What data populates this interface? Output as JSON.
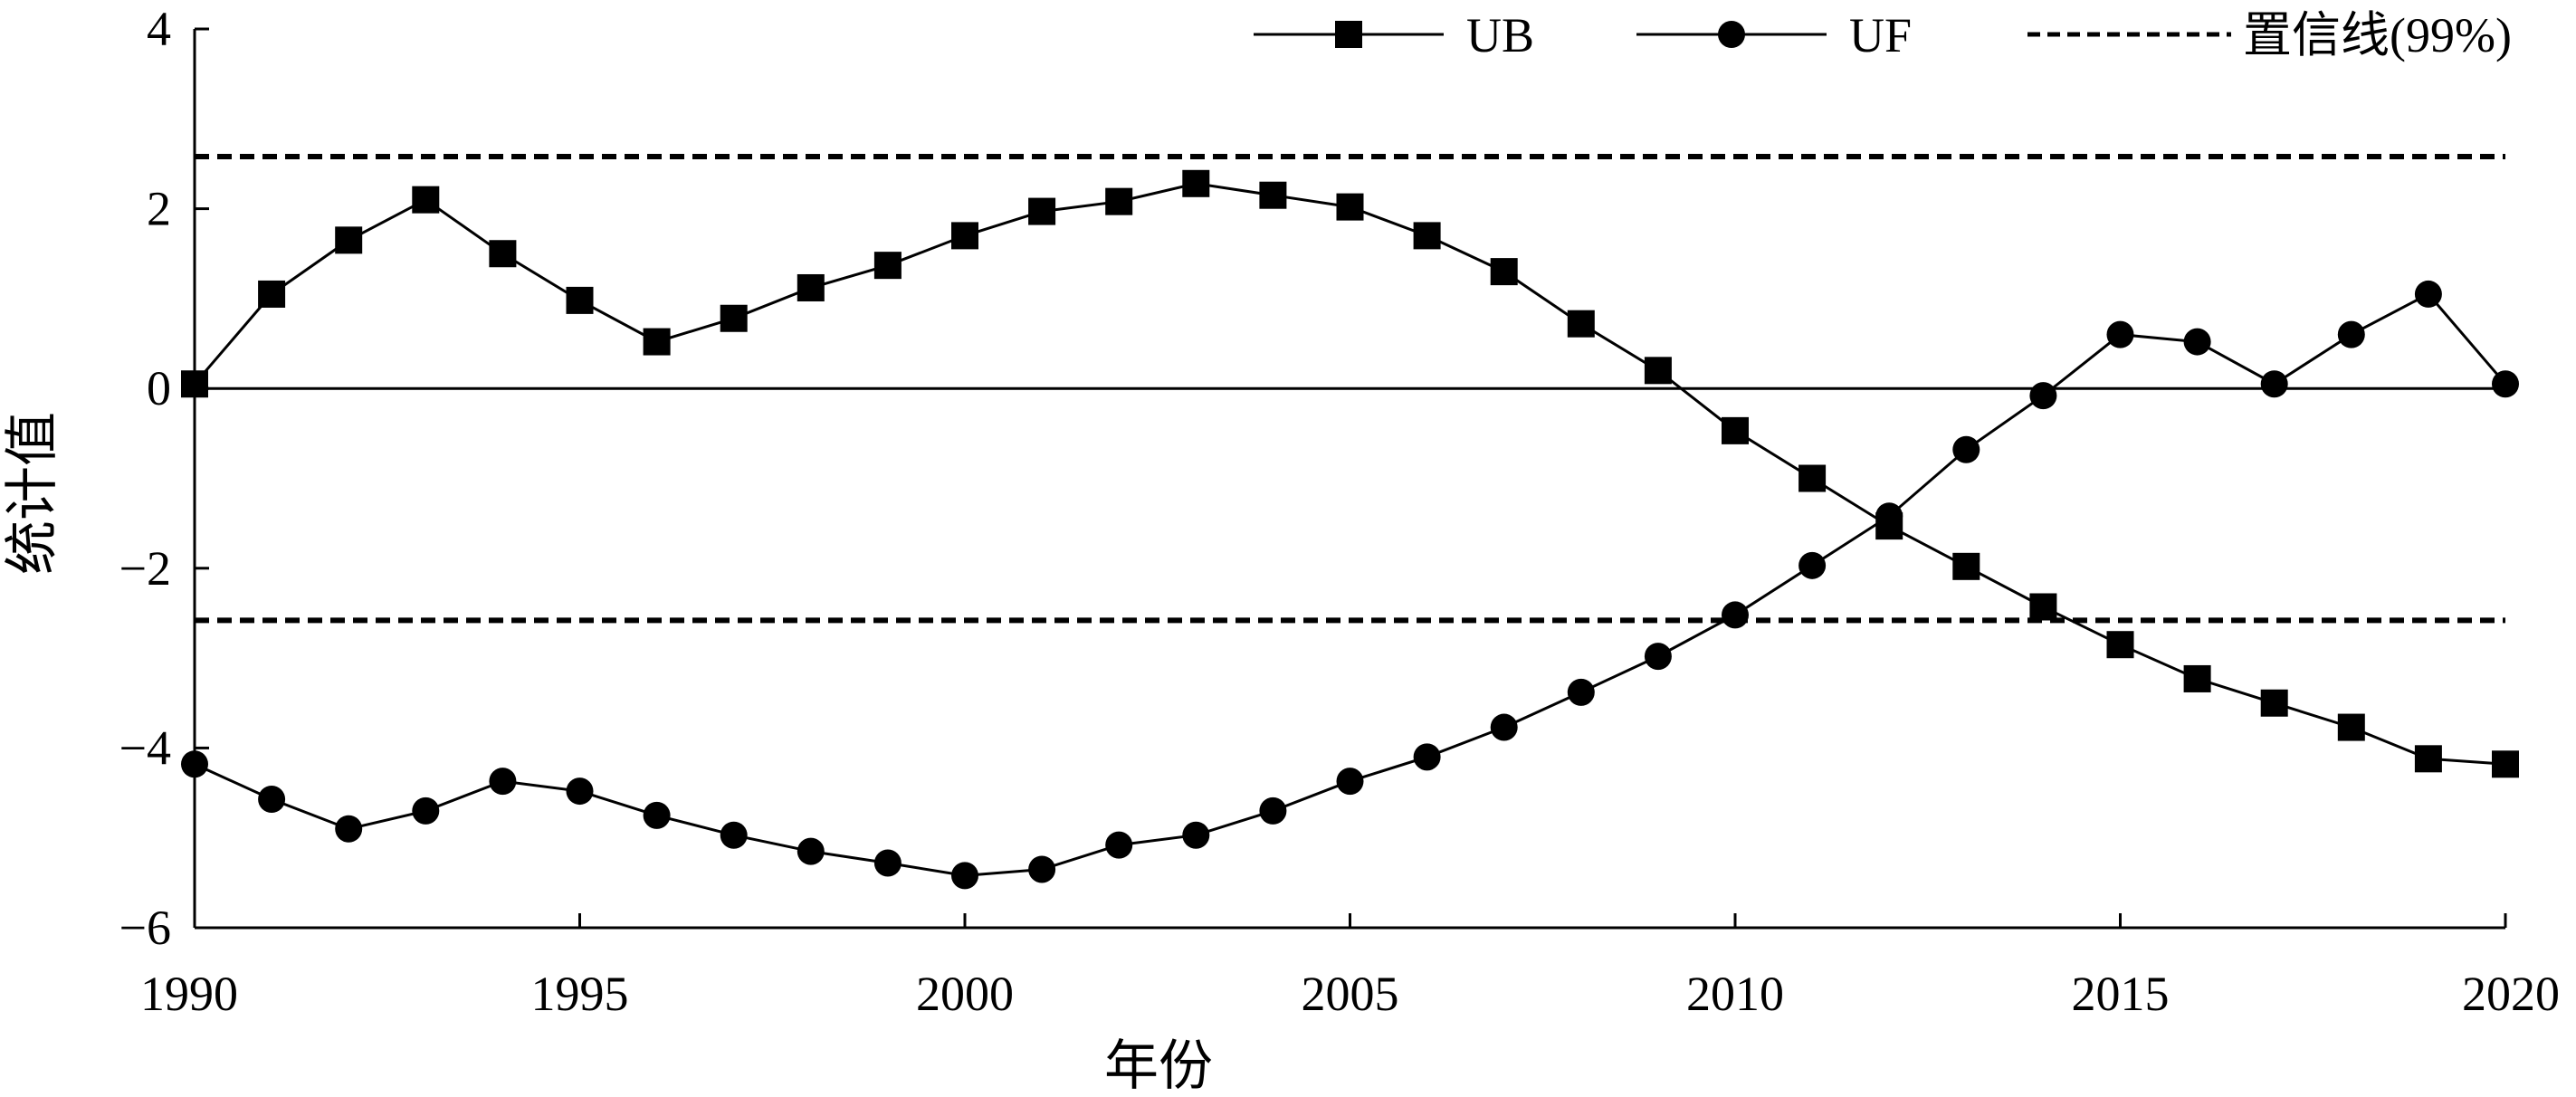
{
  "chart_data": {
    "type": "line",
    "xlabel": "年份",
    "ylabel": "统计值",
    "xlim": [
      1990,
      2020
    ],
    "ylim": [
      -6,
      4
    ],
    "x_ticks": [
      1990,
      1995,
      2000,
      2005,
      2010,
      2015,
      2020
    ],
    "y_ticks": [
      -6,
      -4,
      -2,
      0,
      2,
      4
    ],
    "y_tick_labels": [
      "−6",
      "−4",
      "−2",
      "0",
      "2",
      "4"
    ],
    "grid": false,
    "legend_position": "top-right",
    "x": [
      1990,
      1991,
      1992,
      1993,
      1994,
      1995,
      1996,
      1997,
      1998,
      1999,
      2000,
      2001,
      2002,
      2003,
      2004,
      2005,
      2006,
      2007,
      2008,
      2009,
      2010,
      2011,
      2012,
      2013,
      2014,
      2015,
      2016,
      2017,
      2018,
      2019,
      2020
    ],
    "series": [
      {
        "name": "UB",
        "marker": "square",
        "color": "#000000",
        "values": [
          0.05,
          1.05,
          1.65,
          2.1,
          1.5,
          0.98,
          0.52,
          0.78,
          1.12,
          1.37,
          1.7,
          1.97,
          2.08,
          2.28,
          2.15,
          2.02,
          1.7,
          1.3,
          0.72,
          0.2,
          -0.47,
          -1.0,
          -1.53,
          -1.98,
          -2.43,
          -2.85,
          -3.23,
          -3.5,
          -3.77,
          -4.12,
          -4.18
        ]
      },
      {
        "name": "UF",
        "marker": "circle",
        "color": "#000000",
        "values": [
          -4.18,
          -4.57,
          -4.9,
          -4.7,
          -4.37,
          -4.48,
          -4.75,
          -4.97,
          -5.15,
          -5.28,
          -5.42,
          -5.35,
          -5.08,
          -4.97,
          -4.7,
          -4.37,
          -4.1,
          -3.77,
          -3.38,
          -2.98,
          -2.52,
          -1.97,
          -1.42,
          -0.68,
          -0.08,
          0.6,
          0.52,
          0.05,
          0.6,
          1.05,
          0.05
        ]
      }
    ],
    "reference_lines": [
      {
        "name": "置信线(99%)",
        "style": "dashed",
        "values": [
          2.58,
          -2.58
        ]
      },
      {
        "name": "",
        "style": "solid",
        "values": [
          0
        ]
      }
    ]
  }
}
